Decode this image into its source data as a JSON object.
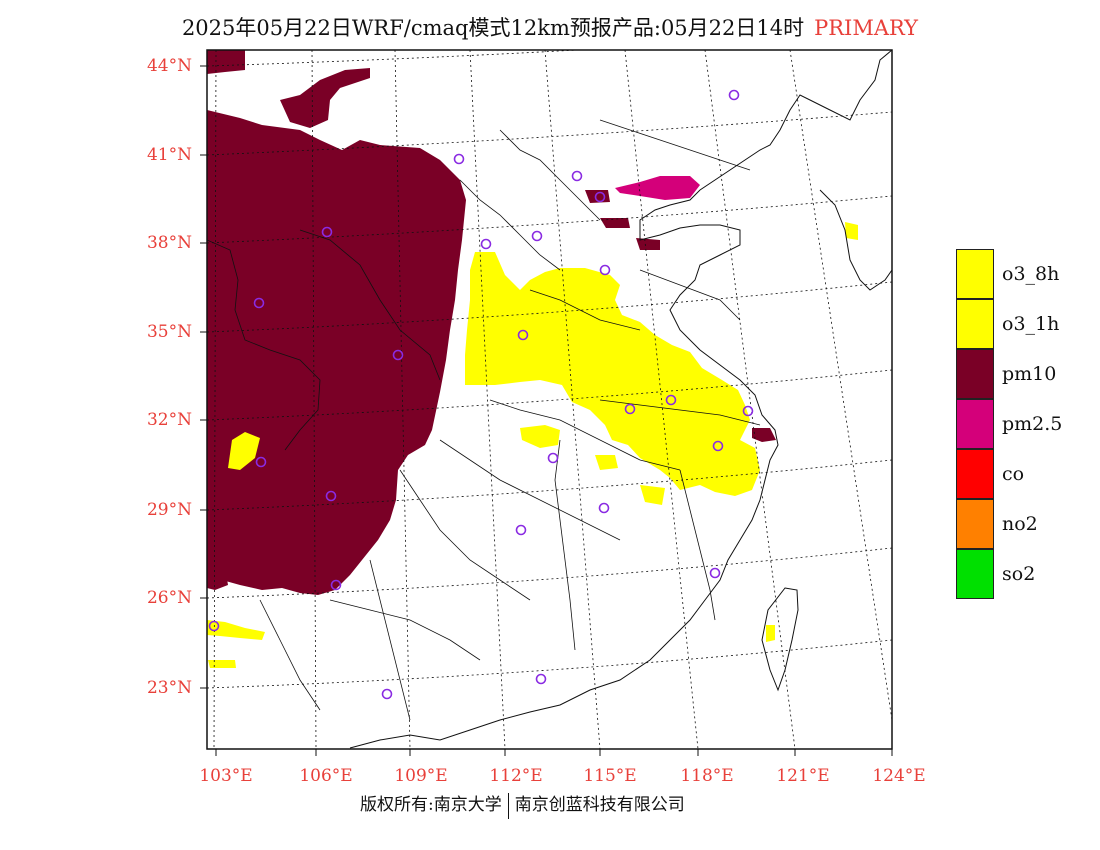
{
  "title": {
    "main": "2025年05月22日WRF/cmaq模式12km预报产品:05月22日14时",
    "mode": "PRIMARY"
  },
  "colors": {
    "o3_8h": "#ffff00",
    "o3_1h": "#ffff00",
    "pm10": "#7a0026",
    "pm2_5": "#d4007a",
    "co": "#ff0000",
    "no2": "#ff8000",
    "so2": "#00e000",
    "station": "#8a2be2",
    "axis_label": "#e8403a"
  },
  "axes": {
    "lat_labels": [
      "44°N",
      "41°N",
      "38°N",
      "35°N",
      "32°N",
      "29°N",
      "26°N",
      "23°N"
    ],
    "lon_labels": [
      "103°E",
      "106°E",
      "109°E",
      "112°E",
      "115°E",
      "118°E",
      "121°E",
      "124°E"
    ]
  },
  "legend": {
    "items": [
      {
        "label": "o3_8h",
        "color": "#ffff00"
      },
      {
        "label": "o3_1h",
        "color": "#ffff00"
      },
      {
        "label": "pm10",
        "color": "#7a0026"
      },
      {
        "label": "pm2.5",
        "color": "#d4007a"
      },
      {
        "label": "co",
        "color": "#ff0000"
      },
      {
        "label": "no2",
        "color": "#ff8000"
      },
      {
        "label": "so2",
        "color": "#00e000"
      }
    ]
  },
  "footer": {
    "left": "版权所有:南京大学",
    "right": "南京创蓝科技有限公司"
  }
}
